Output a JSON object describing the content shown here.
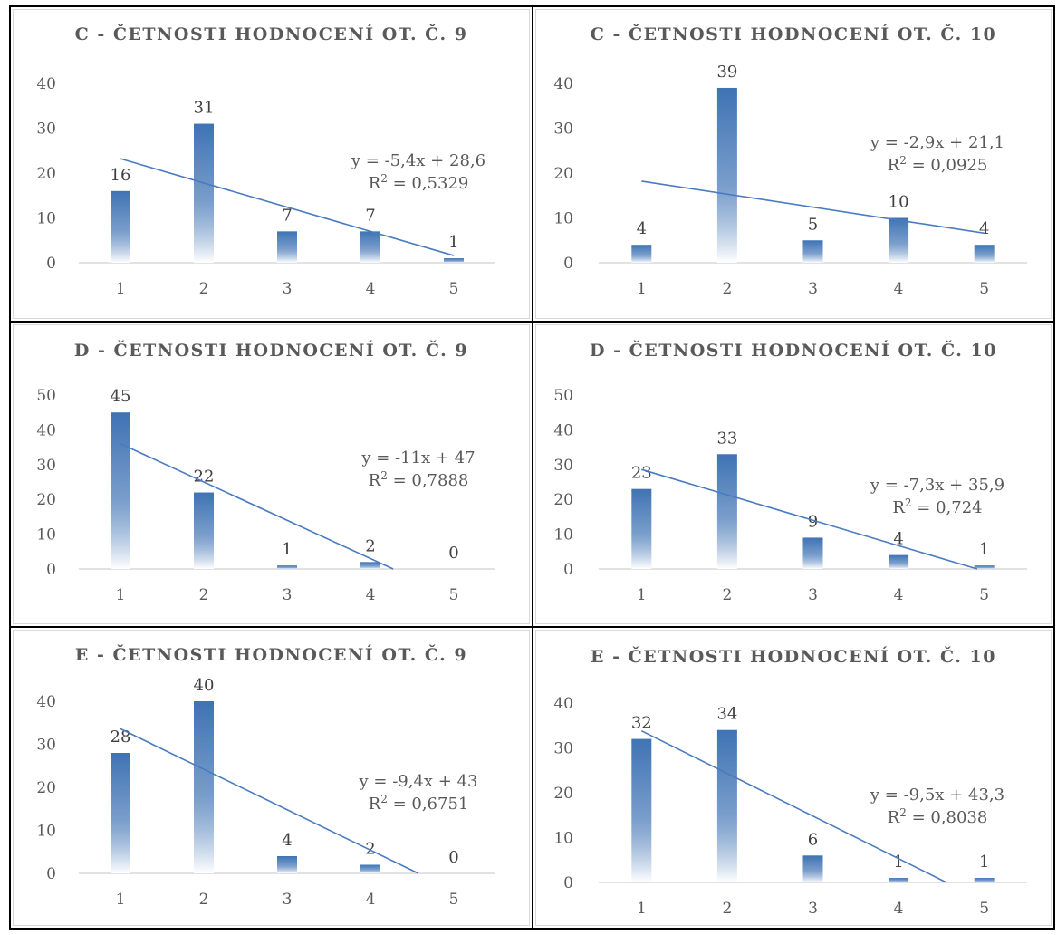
{
  "chart_data": [
    {
      "type": "bar",
      "title": "C - ČETNOSTI HODNOCENÍ OT. Č. 9",
      "categories": [
        "1",
        "2",
        "3",
        "4",
        "5"
      ],
      "values": [
        16,
        31,
        7,
        7,
        1
      ],
      "y_ticks": [
        "0",
        "10",
        "20",
        "30",
        "40"
      ],
      "ylim": [
        0,
        40
      ],
      "trendline": {
        "slope": -5.4,
        "intercept": 28.6,
        "equation": "y = -5,4x + 28,6",
        "r2_label": "R",
        "r2_value": " = 0,5329"
      }
    },
    {
      "type": "bar",
      "title": "C - ČETNOSTI HODNOCENÍ OT. Č. 10",
      "categories": [
        "1",
        "2",
        "3",
        "4",
        "5"
      ],
      "values": [
        4,
        39,
        5,
        10,
        4
      ],
      "y_ticks": [
        "0",
        "10",
        "20",
        "30",
        "40"
      ],
      "ylim": [
        0,
        40
      ],
      "trendline": {
        "slope": -2.9,
        "intercept": 21.1,
        "equation": "y = -2,9x + 21,1",
        "r2_label": "R",
        "r2_value": " = 0,0925"
      }
    },
    {
      "type": "bar",
      "title": "D - ČETNOSTI HODNOCENÍ OT. Č. 9",
      "categories": [
        "1",
        "2",
        "3",
        "4",
        "5"
      ],
      "values": [
        45,
        22,
        1,
        2,
        0
      ],
      "y_ticks": [
        "0",
        "10",
        "20",
        "30",
        "40",
        "50"
      ],
      "ylim": [
        0,
        50
      ],
      "trendline": {
        "slope": -11,
        "intercept": 47,
        "equation": "y = -11x + 47",
        "r2_label": "R",
        "r2_value": " = 0,7888"
      }
    },
    {
      "type": "bar",
      "title": "D - ČETNOSTI HODNOCENÍ OT. Č. 10",
      "categories": [
        "1",
        "2",
        "3",
        "4",
        "5"
      ],
      "values": [
        23,
        33,
        9,
        4,
        1
      ],
      "y_ticks": [
        "0",
        "10",
        "20",
        "30",
        "40",
        "50"
      ],
      "ylim": [
        0,
        50
      ],
      "trendline": {
        "slope": -7.3,
        "intercept": 35.9,
        "equation": "y = -7,3x + 35,9",
        "r2_label": "R",
        "r2_value": " = 0,724"
      }
    },
    {
      "type": "bar",
      "title": "E - ČETNOSTI HODNOCENÍ OT. Č. 9",
      "categories": [
        "1",
        "2",
        "3",
        "4",
        "5"
      ],
      "values": [
        28,
        40,
        4,
        2,
        0
      ],
      "y_ticks": [
        "0",
        "10",
        "20",
        "30",
        "40"
      ],
      "ylim": [
        0,
        40
      ],
      "trendline": {
        "slope": -9.4,
        "intercept": 43,
        "equation": "y = -9,4x + 43",
        "r2_label": "R",
        "r2_value": " = 0,6751"
      }
    },
    {
      "type": "bar",
      "title": "E - ČETNOSTI HODNOCENÍ OT. Č. 10",
      "categories": [
        "1",
        "2",
        "3",
        "4",
        "5"
      ],
      "values": [
        32,
        34,
        6,
        1,
        1
      ],
      "y_ticks": [
        "0",
        "10",
        "20",
        "30",
        "40"
      ],
      "ylim": [
        0,
        40
      ],
      "trendline": {
        "slope": -9.5,
        "intercept": 43.3,
        "equation": "y = -9,5x + 43,3",
        "r2_label": "R",
        "r2_value": " = 0,8038"
      }
    }
  ],
  "colors": {
    "bar_top": "#3f73b4",
    "bar_bottom": "#ffffff",
    "trendline": "#4a7bc0",
    "axis": "#d9d9d9",
    "text": "#595959"
  }
}
